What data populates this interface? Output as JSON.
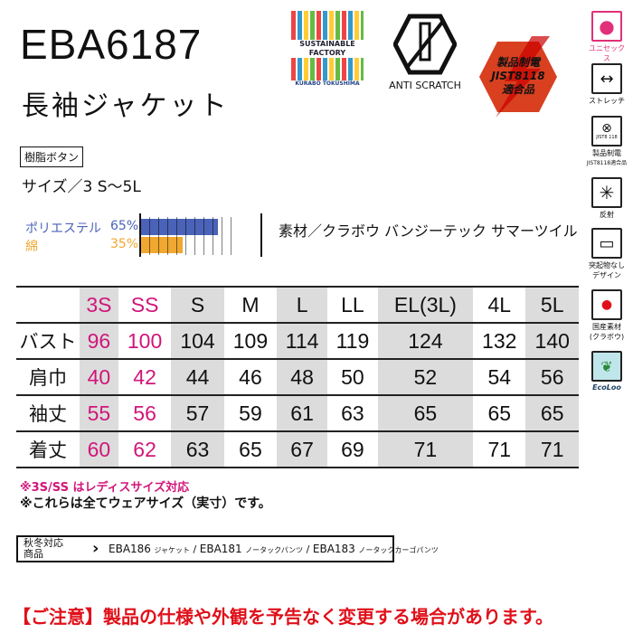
{
  "product": {
    "code": "EBA6187",
    "name": "長袖ジャケット",
    "button_tag": "樹脂ボタン",
    "size_range": "サイズ／3 S～5L"
  },
  "composition": [
    {
      "label": "ポリエステル",
      "pct": "65%",
      "value": 65,
      "color": "#4a63b8"
    },
    {
      "label": "綿",
      "pct": "35%",
      "value": 35,
      "color": "#f0a830"
    }
  ],
  "fabric": "素材／クラボウ バンジーテック サマーツイル",
  "logos": {
    "sustainable": [
      "SUSTAINABLE",
      "FACTORY",
      "KURABO TOKUSHIMA"
    ],
    "anti_scratch": "ANTI SCRATCH",
    "jis": [
      "製品制電",
      "JIST8118",
      "適合品"
    ]
  },
  "side_icons": [
    {
      "icon": "unisex-icon",
      "label": "ユニセックス",
      "color": "#e0307a"
    },
    {
      "icon": "stretch-icon",
      "label": "ストレッチ"
    },
    {
      "icon": "antistatic-icon",
      "label": "製品制電",
      "sub": "JIST8118適合品",
      "inner": "JIST8 118"
    },
    {
      "icon": "reflective-icon",
      "label": "反射"
    },
    {
      "icon": "no-protrusion-icon",
      "label": "突起物なし",
      "sub": "デザイン"
    },
    {
      "icon": "japan-flag-icon",
      "label": "国産素材",
      "sub": "(クラボウ)"
    },
    {
      "icon": "ecoloo-icon",
      "label": "EcoLoo"
    }
  ],
  "size_table": {
    "headers": [
      "3S",
      "SS",
      "S",
      "M",
      "L",
      "LL",
      "EL(3L)",
      "4L",
      "5L"
    ],
    "rows": [
      {
        "label": "バスト",
        "values": [
          "96",
          "100",
          "104",
          "109",
          "114",
          "119",
          "124",
          "132",
          "140"
        ]
      },
      {
        "label": "肩巾",
        "values": [
          "40",
          "42",
          "44",
          "46",
          "48",
          "50",
          "52",
          "54",
          "56"
        ]
      },
      {
        "label": "袖丈",
        "values": [
          "55",
          "56",
          "57",
          "59",
          "61",
          "63",
          "65",
          "65",
          "65"
        ]
      },
      {
        "label": "着丈",
        "values": [
          "60",
          "62",
          "63",
          "65",
          "67",
          "69",
          "71",
          "71",
          "71"
        ]
      }
    ]
  },
  "notes": [
    "※3S/SS はレディスサイズ対応",
    "※これらは全てウェアサイズ（実寸）です。"
  ],
  "related": {
    "label1": "秋冬対応",
    "label2": "商品",
    "items": [
      {
        "code": "EBA186",
        "desc": "ジャケット"
      },
      {
        "code": "EBA181",
        "desc": "ノータックパンツ"
      },
      {
        "code": "EBA183",
        "desc": "ノータックカーゴパンツ"
      }
    ]
  },
  "warning": "【ご注意】製品の仕様や外観を予告なく変更する場合があります。",
  "colors": {
    "ladies": "#d0167a",
    "warning": "#e0101a",
    "shade": "#dcdcdc"
  }
}
